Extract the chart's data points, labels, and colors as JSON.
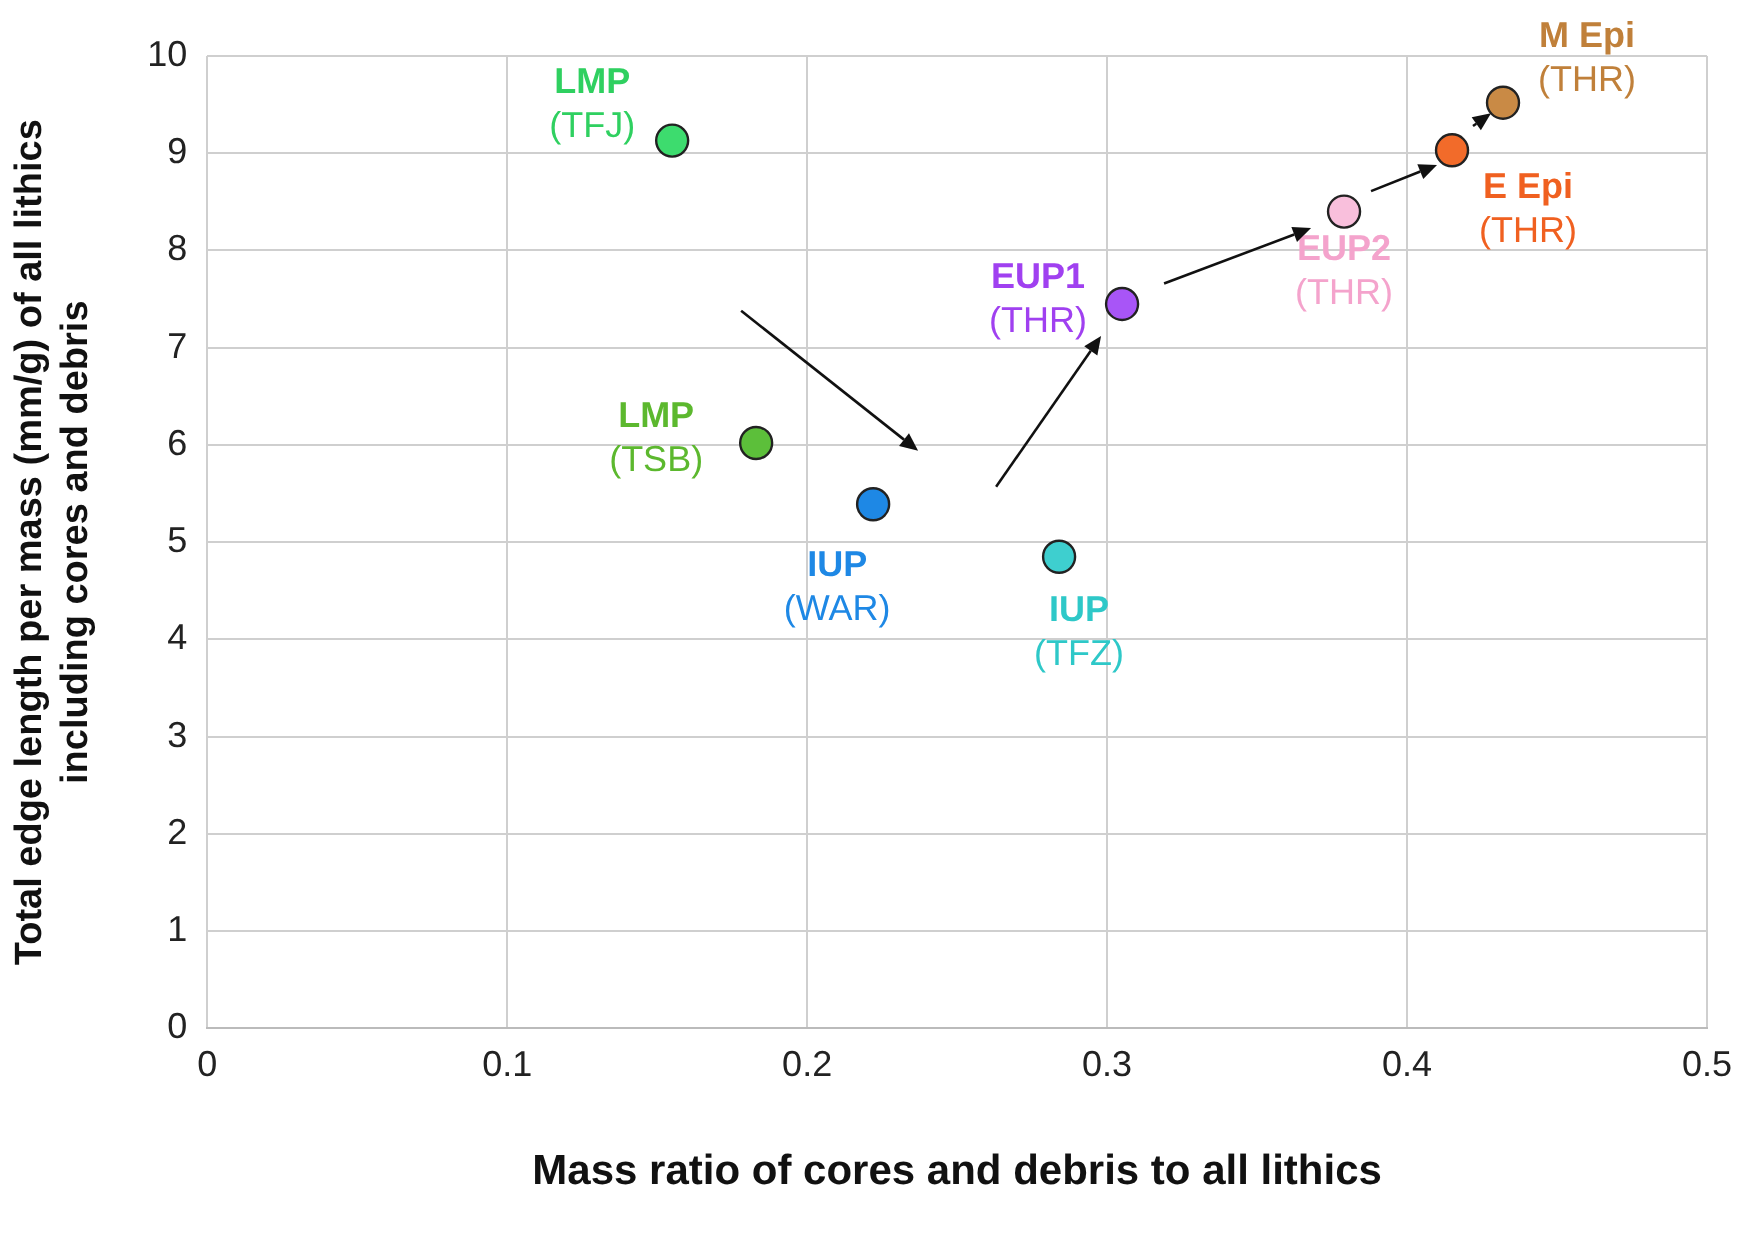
{
  "chart_data": {
    "type": "scatter",
    "xlabel": "Mass ratio of cores and debris to all lithics",
    "ylabel": "Total edge length per mass (mm/g) of all lithics\nincluding cores and debris",
    "x": [
      0.155,
      0.183,
      0.222,
      0.284,
      0.305,
      0.379,
      0.415,
      0.432
    ],
    "values": [
      9.13,
      6.02,
      5.39,
      4.85,
      7.45,
      8.4,
      9.03,
      9.52
    ],
    "colors": [
      "#3ddc6e",
      "#5cbf3a",
      "#1e88e5",
      "#3ecfcf",
      "#a855f7",
      "#f9bfdc",
      "#f26b2a",
      "#c98a45"
    ],
    "annotations": [
      {
        "text": "LMP\n(TFJ)",
        "x": 0.155,
        "y": 9.13
      },
      {
        "text": "LMP\n(TSB)",
        "x": 0.183,
        "y": 6.02
      },
      {
        "text": "IUP\n(WAR)",
        "x": 0.222,
        "y": 5.39
      },
      {
        "text": "IUP\n(TFZ)",
        "x": 0.284,
        "y": 4.85
      },
      {
        "text": "EUP1\n(THR)",
        "x": 0.305,
        "y": 7.45
      },
      {
        "text": "EUP2\n(THR)",
        "x": 0.379,
        "y": 8.4
      },
      {
        "text": "E Epi\n(THR)",
        "x": 0.415,
        "y": 9.03
      },
      {
        "text": "M Epi\n(THR)",
        "x": 0.432,
        "y": 9.52
      }
    ],
    "xlim": [
      0,
      0.5
    ],
    "xticks": [
      0,
      0.1,
      0.2,
      0.3,
      0.4,
      0.5
    ],
    "ylim": [
      0,
      10
    ],
    "yticks": [
      0,
      1,
      2,
      3,
      4,
      5,
      6,
      7,
      8,
      9,
      10
    ],
    "grid": true,
    "legend": false,
    "marker": "circle"
  }
}
